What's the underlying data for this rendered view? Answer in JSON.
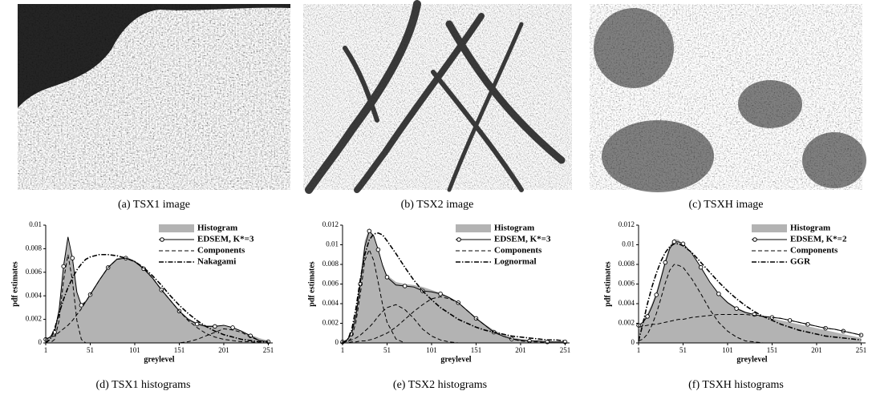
{
  "images": [
    {
      "caption": "(a) TSX1 image"
    },
    {
      "caption": "(b) TSX2 image"
    },
    {
      "caption": "(c) TSXH image"
    }
  ],
  "chart_data": [
    {
      "type": "line",
      "caption": "(d) TSX1 histograms",
      "xlabel": "greylevel",
      "ylabel": "pdf estimates",
      "x": [
        1,
        6,
        11,
        16,
        21,
        26,
        31,
        36,
        41,
        46,
        51,
        61,
        71,
        81,
        91,
        101,
        111,
        121,
        131,
        141,
        151,
        161,
        171,
        181,
        191,
        201,
        211,
        221,
        231,
        241,
        251
      ],
      "xlim": [
        1,
        256
      ],
      "xticks": [
        1,
        51,
        101,
        151,
        201,
        251
      ],
      "ylim": [
        0,
        0.01
      ],
      "yticks": [
        0,
        0.002,
        0.004,
        0.006,
        0.008,
        0.01
      ],
      "legend": "upper right",
      "series": [
        {
          "name": "Histogram",
          "style": "area",
          "color": "#b3b3b3",
          "values": [
            0.0002,
            0.0006,
            0.0012,
            0.003,
            0.0068,
            0.0088,
            0.007,
            0.0042,
            0.0033,
            0.0036,
            0.0042,
            0.0054,
            0.0065,
            0.0072,
            0.0073,
            0.007,
            0.0064,
            0.0056,
            0.0046,
            0.0037,
            0.0028,
            0.0021,
            0.0017,
            0.0015,
            0.0015,
            0.0015,
            0.0013,
            0.001,
            0.0007,
            0.0004,
            0.0002
          ]
        },
        {
          "name": "EDSEM, K*=3",
          "style": "solid",
          "marker": "circle",
          "color": "#000000",
          "values": [
            0.0003,
            0.0005,
            0.0009,
            0.0028,
            0.0065,
            0.009,
            0.0072,
            0.0043,
            0.0032,
            0.0035,
            0.0041,
            0.0053,
            0.0064,
            0.0071,
            0.0072,
            0.0069,
            0.0063,
            0.0055,
            0.0045,
            0.0036,
            0.0027,
            0.002,
            0.0016,
            0.0014,
            0.0014,
            0.0015,
            0.0013,
            0.001,
            0.0006,
            0.0002,
            0.0001
          ]
        },
        {
          "name": "Components",
          "style": "dashed",
          "color": "#000000",
          "curves": [
            [
              0,
              0,
              0.0003,
              0.0019,
              0.0053,
              0.0075,
              0.0053,
              0.0019,
              0.0003,
              0,
              0,
              0,
              0,
              0,
              0,
              0,
              0,
              0,
              0,
              0,
              0,
              0,
              0,
              0,
              0,
              0,
              0,
              0,
              0,
              0,
              0
            ],
            [
              0.0003,
              0.0005,
              0.0006,
              0.0009,
              0.0012,
              0.0015,
              0.0019,
              0.0024,
              0.0029,
              0.0035,
              0.0041,
              0.0053,
              0.0064,
              0.0071,
              0.0072,
              0.0069,
              0.0063,
              0.0055,
              0.0045,
              0.0036,
              0.0027,
              0.0019,
              0.0013,
              0.0008,
              0.0005,
              0.0003,
              0.0002,
              0.0001,
              0.0001,
              0,
              0
            ],
            [
              0,
              0,
              0,
              0,
              0,
              0,
              0,
              0,
              0,
              0,
              0,
              0,
              0,
              0,
              0,
              0,
              0,
              0,
              0,
              0,
              0,
              0.0001,
              0.0003,
              0.0006,
              0.0009,
              0.0012,
              0.0011,
              0.0009,
              0.0005,
              0.0002,
              0.0001
            ]
          ]
        },
        {
          "name": "Nakagami",
          "style": "dashdot",
          "color": "#000000",
          "values": [
            0,
            0.0003,
            0.0012,
            0.0025,
            0.0037,
            0.0047,
            0.0055,
            0.0062,
            0.0067,
            0.0071,
            0.0073,
            0.0075,
            0.0075,
            0.0074,
            0.0072,
            0.0069,
            0.0064,
            0.0057,
            0.0049,
            0.004,
            0.0032,
            0.0025,
            0.0019,
            0.0014,
            0.001,
            0.0007,
            0.0005,
            0.0003,
            0.0002,
            0.0001,
            0.0001
          ]
        }
      ]
    },
    {
      "type": "line",
      "caption": "(e) TSX2 histograms",
      "xlabel": "greylevel",
      "ylabel": "pdf estimates",
      "x": [
        1,
        6,
        11,
        16,
        21,
        26,
        31,
        36,
        41,
        46,
        51,
        61,
        71,
        81,
        91,
        101,
        111,
        121,
        131,
        141,
        151,
        161,
        171,
        181,
        191,
        201,
        211,
        221,
        231,
        241,
        251
      ],
      "xlim": [
        1,
        256
      ],
      "xticks": [
        1,
        51,
        101,
        151,
        201,
        251
      ],
      "ylim": [
        0,
        0.012
      ],
      "yticks": [
        0,
        0.002,
        0.004,
        0.006,
        0.008,
        0.01,
        0.012
      ],
      "legend": "upper right",
      "series": [
        {
          "name": "Histogram",
          "style": "area",
          "color": "#b3b3b3",
          "values": [
            0.0001,
            0.0004,
            0.0012,
            0.0032,
            0.0068,
            0.0104,
            0.0117,
            0.0108,
            0.0094,
            0.008,
            0.0069,
            0.0062,
            0.006,
            0.0059,
            0.0057,
            0.0054,
            0.0051,
            0.0047,
            0.0041,
            0.0034,
            0.0026,
            0.0019,
            0.0013,
            0.0009,
            0.0006,
            0.0004,
            0.0003,
            0.0002,
            0.0002,
            0.0001,
            0.0001
          ]
        },
        {
          "name": "EDSEM, K*=3",
          "style": "solid",
          "marker": "circle",
          "color": "#000000",
          "values": [
            0.0001,
            0.0003,
            0.0009,
            0.0027,
            0.006,
            0.0098,
            0.0114,
            0.0109,
            0.0095,
            0.0079,
            0.0067,
            0.0059,
            0.0058,
            0.0057,
            0.0053,
            0.0052,
            0.005,
            0.0046,
            0.0041,
            0.0033,
            0.0025,
            0.0018,
            0.0011,
            0.0007,
            0.0004,
            0.0003,
            0.0002,
            0.0002,
            0.0001,
            0.0001,
            0.0001
          ]
        },
        {
          "name": "Components",
          "style": "dashed",
          "color": "#000000",
          "curves": [
            [
              0,
              0,
              0.0005,
              0.0021,
              0.005,
              0.0084,
              0.0095,
              0.0084,
              0.0062,
              0.0039,
              0.0021,
              0.0004,
              0,
              0,
              0,
              0,
              0,
              0,
              0,
              0,
              0,
              0,
              0,
              0,
              0,
              0,
              0,
              0,
              0,
              0,
              0
            ],
            [
              0.0001,
              0.0002,
              0.0003,
              0.0005,
              0.0008,
              0.0012,
              0.0016,
              0.0021,
              0.0027,
              0.0032,
              0.0036,
              0.0039,
              0.0034,
              0.0025,
              0.0014,
              0.0007,
              0.0003,
              0.0001,
              0,
              0,
              0,
              0,
              0,
              0,
              0,
              0,
              0,
              0,
              0,
              0,
              0
            ],
            [
              0,
              0,
              0.0001,
              0.0001,
              0.0002,
              0.0002,
              0.0003,
              0.0004,
              0.0006,
              0.0008,
              0.001,
              0.0016,
              0.0024,
              0.0032,
              0.0039,
              0.0045,
              0.0047,
              0.0045,
              0.0041,
              0.0033,
              0.0025,
              0.0018,
              0.0011,
              0.0007,
              0.0004,
              0.0002,
              0.0001,
              0.0001,
              0,
              0,
              0
            ]
          ]
        },
        {
          "name": "Lognormal",
          "style": "dashdot",
          "color": "#000000",
          "values": [
            0,
            0.0002,
            0.0012,
            0.0035,
            0.0065,
            0.009,
            0.0105,
            0.0111,
            0.0112,
            0.011,
            0.0104,
            0.0091,
            0.0077,
            0.0064,
            0.0053,
            0.0044,
            0.0036,
            0.003,
            0.0024,
            0.002,
            0.0016,
            0.0013,
            0.0011,
            0.0009,
            0.0007,
            0.0006,
            0.0005,
            0.0004,
            0.0003,
            0.0003,
            0.0002
          ]
        }
      ]
    },
    {
      "type": "line",
      "caption": "(f) TSXH histograms",
      "xlabel": "greylevel",
      "ylabel": "pdf estimates",
      "x": [
        1,
        6,
        11,
        16,
        21,
        26,
        31,
        36,
        41,
        46,
        51,
        61,
        71,
        81,
        91,
        101,
        111,
        121,
        131,
        141,
        151,
        161,
        171,
        181,
        191,
        201,
        211,
        221,
        231,
        241,
        251
      ],
      "xlim": [
        1,
        256
      ],
      "xticks": [
        1,
        51,
        101,
        151,
        201,
        251
      ],
      "ylim": [
        0,
        0.012
      ],
      "yticks": [
        0,
        0.002,
        0.004,
        0.006,
        0.008,
        0.01,
        0.012
      ],
      "legend": "upper right",
      "series": [
        {
          "name": "Histogram",
          "style": "area",
          "color": "#b3b3b3",
          "values": [
            0.0012,
            0.0024,
            0.003,
            0.004,
            0.0052,
            0.0068,
            0.0085,
            0.0099,
            0.0106,
            0.0105,
            0.01,
            0.009,
            0.0076,
            0.0061,
            0.005,
            0.0042,
            0.0036,
            0.0032,
            0.0029,
            0.0027,
            0.0025,
            0.0023,
            0.0021,
            0.0019,
            0.0017,
            0.0015,
            0.0013,
            0.0011,
            0.0009,
            0.0007,
            0.0005
          ]
        },
        {
          "name": "EDSEM, K*=2",
          "style": "solid",
          "marker": "circle",
          "color": "#000000",
          "values": [
            0.0018,
            0.0021,
            0.0027,
            0.0037,
            0.0049,
            0.0065,
            0.0082,
            0.0096,
            0.0103,
            0.0103,
            0.0101,
            0.0091,
            0.0077,
            0.0062,
            0.005,
            0.0041,
            0.0035,
            0.0031,
            0.0029,
            0.0027,
            0.0026,
            0.0025,
            0.0023,
            0.0021,
            0.0019,
            0.0017,
            0.0015,
            0.0014,
            0.0012,
            0.001,
            0.0008
          ]
        },
        {
          "name": "Components",
          "style": "dashed",
          "color": "#000000",
          "curves": [
            [
              0.0002,
              0.0004,
              0.0009,
              0.0018,
              0.003,
              0.0045,
              0.0061,
              0.0074,
              0.008,
              0.0079,
              0.0077,
              0.0065,
              0.005,
              0.0034,
              0.0021,
              0.0012,
              0.0006,
              0.0002,
              0.0001,
              0,
              0,
              0,
              0,
              0,
              0,
              0,
              0,
              0,
              0,
              0,
              0
            ],
            [
              0.0016,
              0.0017,
              0.0018,
              0.0019,
              0.0019,
              0.002,
              0.0021,
              0.0022,
              0.0023,
              0.0024,
              0.0024,
              0.0026,
              0.0027,
              0.0028,
              0.0029,
              0.0029,
              0.0029,
              0.0029,
              0.0028,
              0.0027,
              0.0026,
              0.0025,
              0.0023,
              0.0021,
              0.0019,
              0.0017,
              0.0015,
              0.0014,
              0.0012,
              0.001,
              0.0008
            ]
          ]
        },
        {
          "name": "GGR",
          "style": "dashdot",
          "color": "#000000",
          "values": [
            0.0002,
            0.002,
            0.004,
            0.0057,
            0.0071,
            0.0083,
            0.0092,
            0.0098,
            0.0101,
            0.0101,
            0.0099,
            0.0092,
            0.0082,
            0.0072,
            0.0062,
            0.0053,
            0.0045,
            0.0038,
            0.0032,
            0.0027,
            0.0023,
            0.0019,
            0.0016,
            0.0013,
            0.0011,
            0.0009,
            0.0007,
            0.0006,
            0.0005,
            0.0004,
            0.0003
          ]
        }
      ]
    }
  ]
}
